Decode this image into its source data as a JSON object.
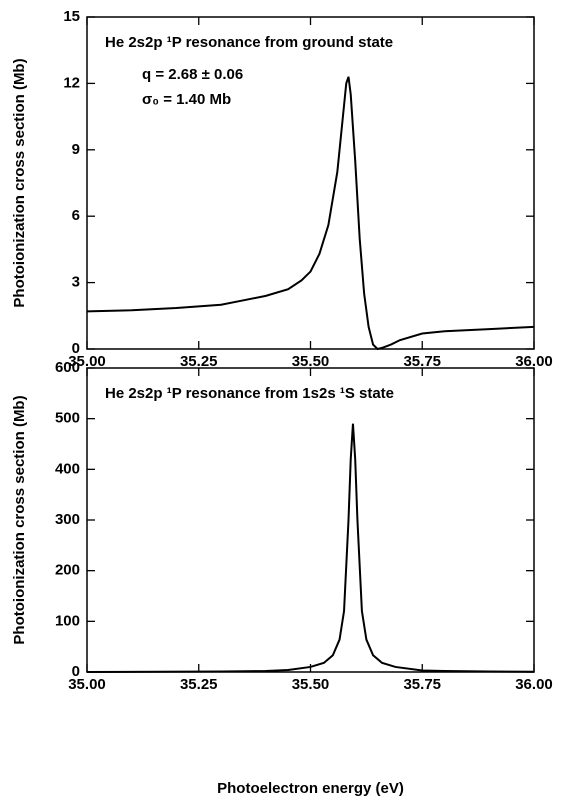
{
  "chart_data": [
    {
      "type": "line",
      "title": "He 2s2p ¹P resonance from ground state",
      "annotations": [
        "q = 2.68 ± 0.06",
        "σ₀ = 1.40 Mb"
      ],
      "ylabel": "Photoionization cross section (Mb)",
      "x": [
        35.0,
        35.1,
        35.2,
        35.3,
        35.35,
        35.4,
        35.45,
        35.48,
        35.5,
        35.52,
        35.54,
        35.56,
        35.57,
        35.58,
        35.585,
        35.59,
        35.6,
        35.61,
        35.62,
        35.63,
        35.64,
        35.65,
        35.66,
        35.68,
        35.7,
        35.75,
        35.8,
        35.9,
        36.0
      ],
      "series": [
        {
          "color": "#000000",
          "values": [
            1.7,
            1.75,
            1.85,
            2.0,
            2.2,
            2.4,
            2.7,
            3.1,
            3.5,
            4.3,
            5.6,
            8.0,
            10.0,
            12.0,
            12.3,
            11.5,
            8.5,
            5.0,
            2.5,
            1.0,
            0.2,
            0.0,
            0.05,
            0.2,
            0.4,
            0.7,
            0.8,
            0.9,
            1.0
          ]
        }
      ],
      "xlim": [
        35,
        36
      ],
      "xticks": [
        {
          "value": 35,
          "label": "35.00"
        },
        {
          "value": 35.25,
          "label": "35.25"
        },
        {
          "value": 35.5,
          "label": "35.50"
        },
        {
          "value": 35.75,
          "label": "35.75"
        },
        {
          "value": 36,
          "label": "36.00"
        }
      ],
      "ylim": [
        0,
        15
      ],
      "yticks": [
        0,
        3,
        6,
        9,
        12,
        15
      ]
    },
    {
      "type": "line",
      "title": "He 2s2p ¹P resonance from 1s2s ¹S state",
      "ylabel": "Photoionization cross section (Mb)",
      "xlabel": "Photoelectron energy (eV)",
      "x": [
        35.0,
        35.3,
        35.4,
        35.45,
        35.5,
        35.53,
        35.55,
        35.565,
        35.575,
        35.585,
        35.59,
        35.595,
        35.6,
        35.605,
        35.615,
        35.625,
        35.64,
        35.66,
        35.69,
        35.75,
        35.8,
        35.9,
        36.0
      ],
      "series": [
        {
          "color": "#000000",
          "values": [
            0,
            1,
            2,
            4,
            10,
            18,
            33,
            64,
            120,
            300,
            420,
            490,
            420,
            300,
            120,
            64,
            33,
            18,
            10,
            3,
            2,
            1,
            0.5
          ]
        }
      ],
      "xlim": [
        35,
        36
      ],
      "xticks": [
        {
          "value": 35,
          "label": "35.00"
        },
        {
          "value": 35.25,
          "label": "35.25"
        },
        {
          "value": 35.5,
          "label": "35.50"
        },
        {
          "value": 35.75,
          "label": "35.75"
        },
        {
          "value": 36,
          "label": "36.00"
        }
      ],
      "ylim": [
        0,
        600
      ],
      "yticks": [
        0,
        100,
        200,
        300,
        400,
        500,
        600
      ]
    }
  ]
}
